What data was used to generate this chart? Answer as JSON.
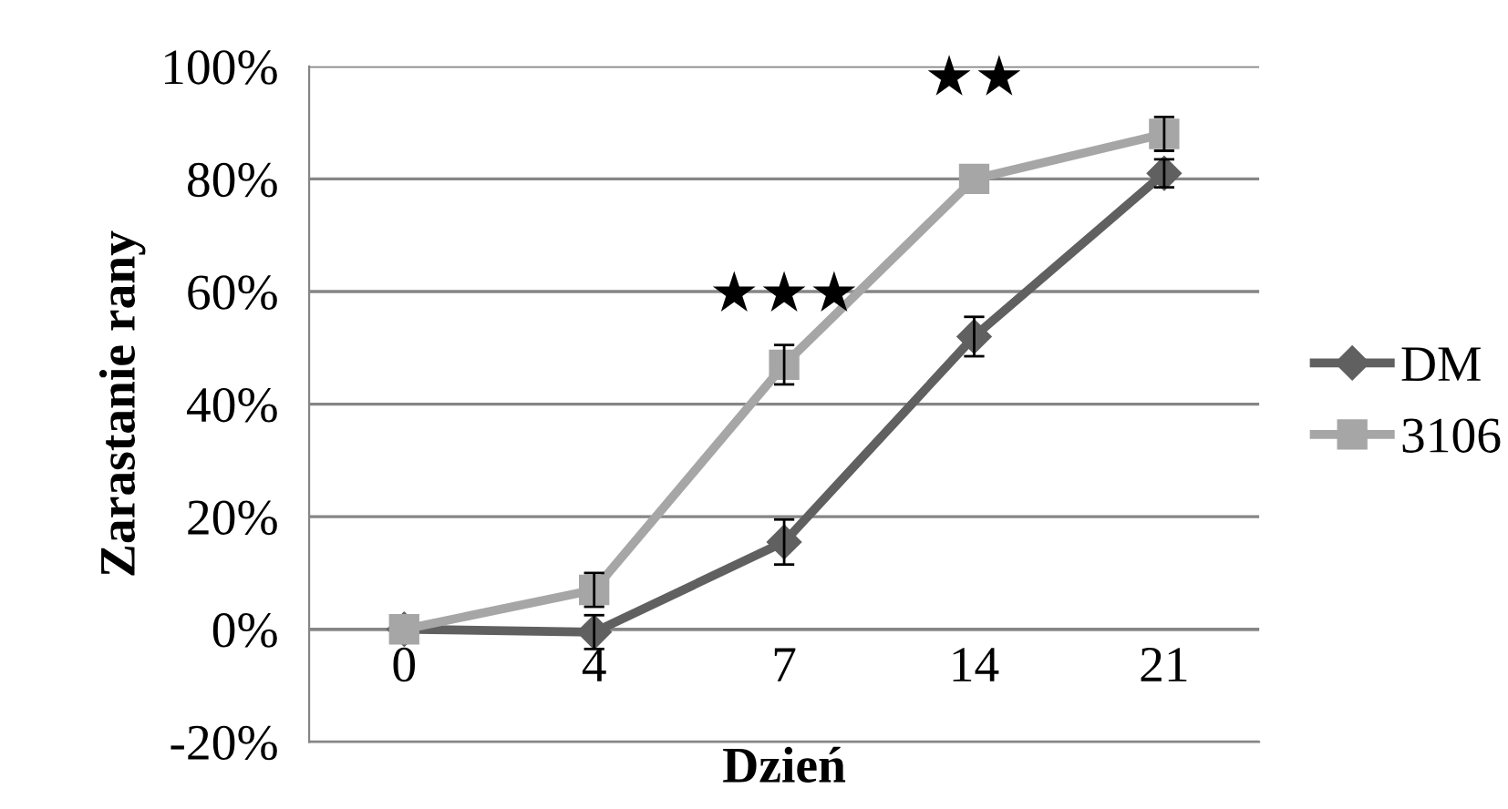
{
  "chart_data": {
    "type": "line",
    "xlabel": "Dzień",
    "ylabel": "Zarastanie rany",
    "categories": [
      "0",
      "4",
      "7",
      "14",
      "21"
    ],
    "series": [
      {
        "name": "DM",
        "color": "#606060",
        "marker": "diamond",
        "values": [
          0,
          -0.5,
          15.5,
          52,
          81
        ],
        "errors": [
          null,
          3,
          4,
          3.5,
          2.5
        ]
      },
      {
        "name": "3106",
        "color": "#a6a6a6",
        "marker": "square",
        "values": [
          0,
          7,
          47,
          80,
          88
        ],
        "errors": [
          null,
          3,
          3.5,
          null,
          3
        ]
      }
    ],
    "ylim": [
      -20,
      100
    ],
    "yticks": [
      {
        "value": -20,
        "label": "-20%"
      },
      {
        "value": 0,
        "label": "0%"
      },
      {
        "value": 20,
        "label": "20%"
      },
      {
        "value": 40,
        "label": "40%"
      },
      {
        "value": 60,
        "label": "60%"
      },
      {
        "value": 80,
        "label": "80%"
      },
      {
        "value": 100,
        "label": "100%"
      }
    ],
    "grid": "y",
    "legend": "right",
    "annotations": [
      "★★★",
      "★★"
    ]
  }
}
